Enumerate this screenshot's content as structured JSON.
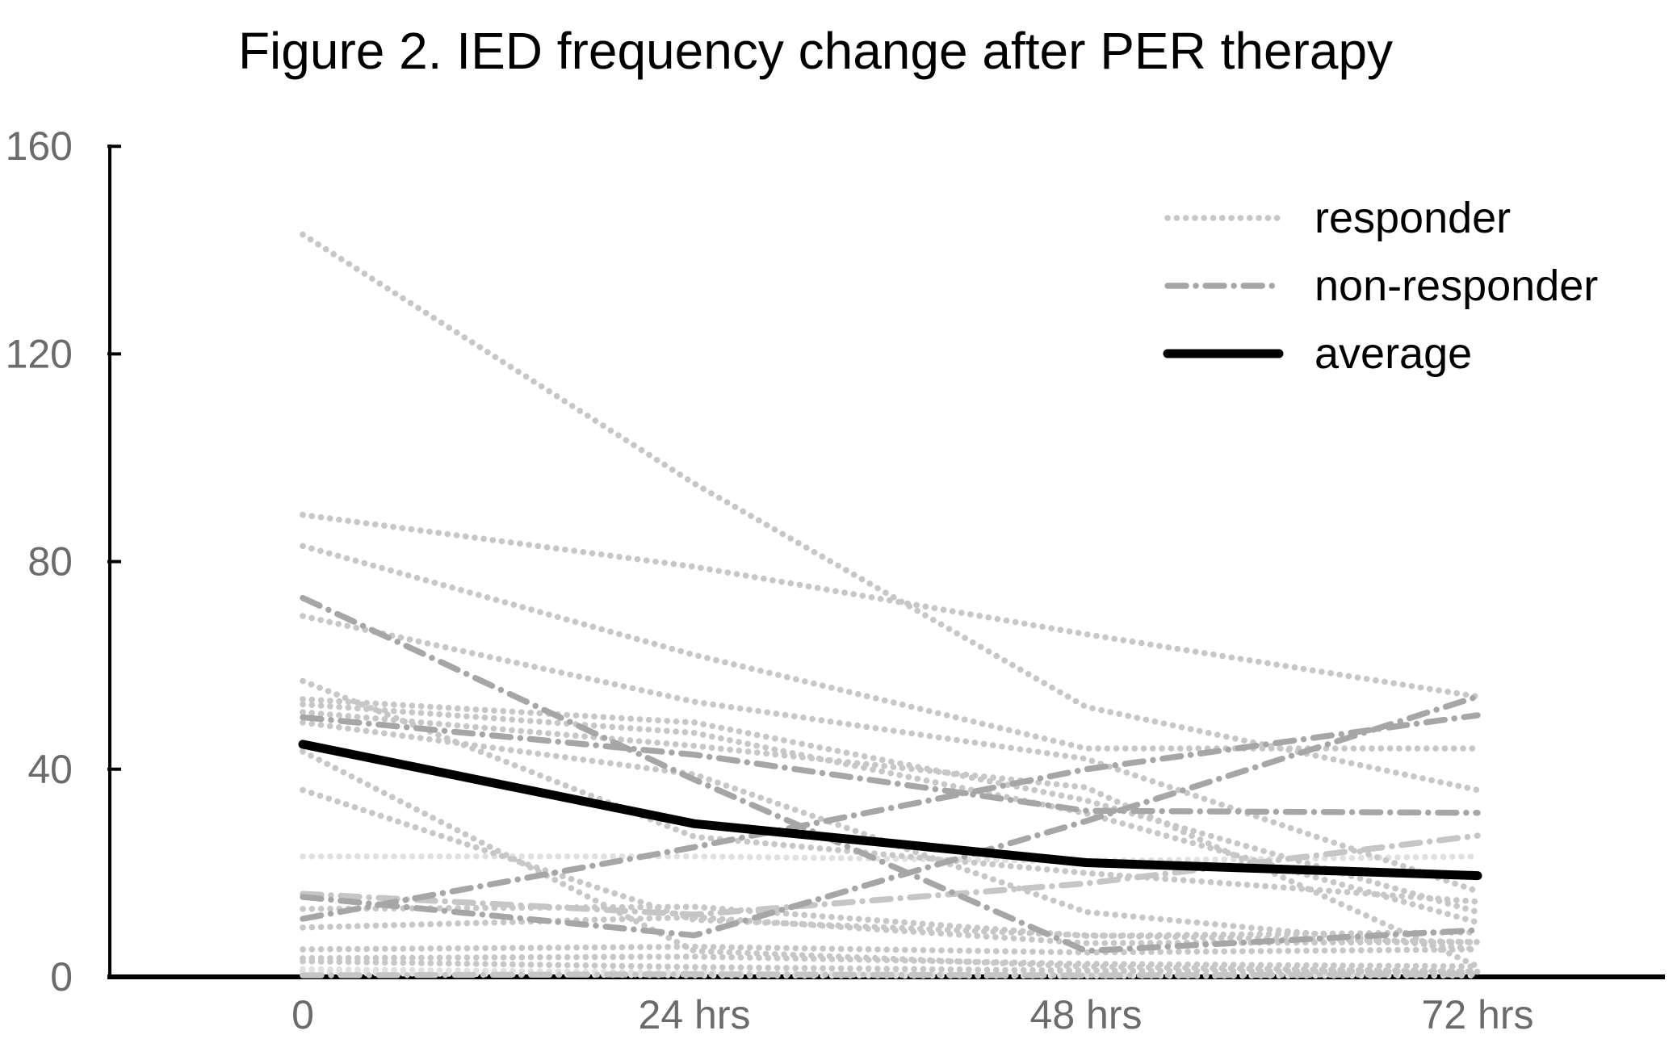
{
  "chart_data": {
    "type": "line",
    "title": "Figure 2. IED frequency change after PER therapy",
    "x_categories": [
      "0",
      "24 hrs",
      "48 hrs",
      "72 hrs"
    ],
    "xlabel": "",
    "ylabel": "",
    "y_tick_values": [
      0,
      40,
      80,
      120,
      160
    ],
    "y_tick_labels": [
      "0",
      "40",
      "80",
      "120",
      "160"
    ],
    "ylim": [
      0,
      160
    ],
    "grid": false,
    "legend_position": "top-right",
    "legend": [
      {
        "label": "responder",
        "style": "responder"
      },
      {
        "label": "non-responder",
        "style": "non_responder"
      },
      {
        "label": "average",
        "style": "average"
      }
    ],
    "series": [
      {
        "name": "responder-1",
        "style": "responder",
        "values": [
          143,
          95,
          52,
          36
        ]
      },
      {
        "name": "responder-2",
        "style": "responder",
        "values": [
          89,
          79,
          66,
          54
        ]
      },
      {
        "name": "responder-3",
        "style": "responder",
        "values": [
          83,
          62,
          44,
          44
        ]
      },
      {
        "name": "responder-4",
        "style": "responder",
        "values": [
          69.5,
          53,
          42,
          16.5
        ]
      },
      {
        "name": "responder-5",
        "style": "responder",
        "values": [
          57,
          27,
          20,
          14.5
        ]
      },
      {
        "name": "responder-6",
        "style": "responder",
        "values": [
          53.5,
          49,
          34,
          12.5
        ]
      },
      {
        "name": "responder-7",
        "style": "responder",
        "values": [
          52.5,
          47,
          31.5,
          10.5
        ]
      },
      {
        "name": "responder-8",
        "style": "responder",
        "values": [
          51,
          44.5,
          36.5,
          2
        ]
      },
      {
        "name": "responder-9",
        "style": "responder",
        "values": [
          49,
          39,
          12.5,
          5.3
        ]
      },
      {
        "name": "responder-10",
        "style": "responder",
        "values": [
          43.4,
          5,
          2,
          1
        ]
      },
      {
        "name": "responder-11",
        "style": "responder",
        "values": [
          36,
          11,
          8,
          6.7
        ]
      },
      {
        "name": "responder-12",
        "style": "responder",
        "values": [
          13.1,
          13.5,
          7.9,
          8.6
        ]
      },
      {
        "name": "responder-13",
        "style": "responder",
        "values": [
          9.5,
          11.5,
          6.5,
          6.7
        ]
      },
      {
        "name": "responder-14",
        "style": "responder",
        "values": [
          5.3,
          5.8,
          4.7,
          5.3
        ]
      },
      {
        "name": "responder-15",
        "style": "responder",
        "values": [
          3.6,
          3.9,
          2.5,
          2
        ]
      },
      {
        "name": "responder-16",
        "style": "responder",
        "values": [
          3,
          1.9,
          1.2,
          1
        ]
      },
      {
        "name": "responder-17",
        "style": "responder_pale",
        "values": [
          23.2,
          23.2,
          22.3,
          23.2
        ]
      },
      {
        "name": "responder-18",
        "style": "responder_pale",
        "values": [
          1.5,
          0.8,
          0.5,
          0.5
        ]
      },
      {
        "name": "responder-19",
        "style": "responder_pale",
        "values": [
          0.8,
          0.3,
          0.2,
          0.3
        ]
      },
      {
        "name": "non-responder-1",
        "style": "non_responder",
        "values": [
          73,
          38,
          5,
          9
        ]
      },
      {
        "name": "non-responder-2",
        "style": "non_responder",
        "values": [
          50,
          42.8,
          32,
          31.6
        ]
      },
      {
        "name": "non-responder-3",
        "style": "non_responder",
        "values": [
          15.4,
          8,
          30,
          54
        ]
      },
      {
        "name": "non-responder-4",
        "style": "non_responder",
        "values": [
          11.2,
          25,
          40,
          50.4
        ]
      },
      {
        "name": "non-responder-5",
        "style": "non_responder_light",
        "values": [
          16,
          12,
          18,
          27.2
        ]
      },
      {
        "name": "non-responder-6",
        "style": "non_responder_light",
        "values": [
          0.3,
          0.5,
          0.3,
          0.5
        ]
      },
      {
        "name": "average",
        "style": "average",
        "values": [
          44.8,
          29.5,
          22,
          19.5
        ]
      }
    ],
    "colors": {
      "responder": "#c7c7c7",
      "responder_pale": "#e0e0e0",
      "non_responder": "#a6a6a6",
      "non_responder_light": "#c6c6c6",
      "average": "#000000",
      "axis": "#000000",
      "tick_label": "#6b6b6b",
      "title": "#000000",
      "background": "#ffffff"
    }
  }
}
